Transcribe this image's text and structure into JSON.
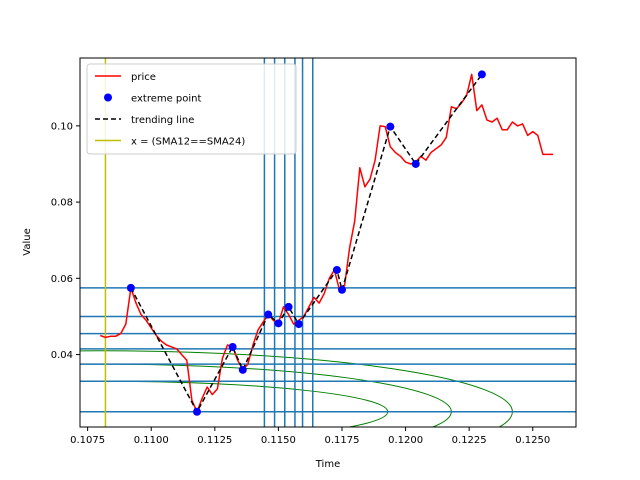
{
  "chart_data": {
    "type": "line",
    "title": "",
    "xlabel": "Time",
    "ylabel": "Value",
    "xlim": [
      0.1072,
      0.1267
    ],
    "ylim": [
      0.021,
      0.1178
    ],
    "x_ticks": [
      0.1075,
      0.11,
      0.1125,
      0.115,
      0.1175,
      0.12,
      0.1225,
      0.125
    ],
    "x_tick_labels": [
      "0.1075",
      "0.1100",
      "0.1125",
      "0.1150",
      "0.1175",
      "0.1200",
      "0.1225",
      "0.1250"
    ],
    "y_ticks": [
      0.04,
      0.06,
      0.08,
      0.1
    ],
    "y_tick_labels": [
      "0.04",
      "0.06",
      "0.08",
      "0.10"
    ],
    "grid": false,
    "legend_position": "upper-left",
    "colors": {
      "price": "#ff0000",
      "extreme": "#0000ff",
      "trend": "#000000",
      "cross": "#bfbf00",
      "level": "#1f77b4",
      "ellipse": "#008000"
    },
    "series": [
      {
        "name": "price",
        "style": "red-line",
        "x": [
          0.108,
          0.1082,
          0.1084,
          0.1086,
          0.1088,
          0.109,
          0.1092,
          0.1094,
          0.1096,
          0.1098,
          0.11,
          0.1102,
          0.1104,
          0.1106,
          0.1108,
          0.111,
          0.1112,
          0.1114,
          0.1116,
          0.1118,
          0.112,
          0.1122,
          0.1124,
          0.1126,
          0.1128,
          0.113,
          0.1132,
          0.1134,
          0.1136,
          0.1138,
          0.114,
          0.1142,
          0.1144,
          0.1146,
          0.1148,
          0.115,
          0.1152,
          0.1154,
          0.1156,
          0.1158,
          0.116,
          0.1162,
          0.1164,
          0.1166,
          0.1168,
          0.117,
          0.1172,
          0.1174,
          0.1176,
          0.1178,
          0.118,
          0.1182,
          0.1184,
          0.1186,
          0.1188,
          0.119,
          0.1192,
          0.1194,
          0.1196,
          0.1198,
          0.12,
          0.1202,
          0.1204,
          0.1206,
          0.1208,
          0.121,
          0.1212,
          0.1214,
          0.1216,
          0.1218,
          0.122,
          0.1222,
          0.1224,
          0.1226,
          0.1228,
          0.123,
          0.1232,
          0.1234,
          0.1236,
          0.1238,
          0.124,
          0.1242,
          0.1244,
          0.1246,
          0.1248,
          0.125,
          0.1252,
          0.1254,
          0.1256,
          0.1258
        ],
        "y": [
          0.045,
          0.0445,
          0.0448,
          0.0448,
          0.0455,
          0.048,
          0.0575,
          0.0535,
          0.0505,
          0.049,
          0.047,
          0.045,
          0.0435,
          0.0425,
          0.042,
          0.0415,
          0.04,
          0.0385,
          0.028,
          0.025,
          0.0285,
          0.0315,
          0.0295,
          0.031,
          0.039,
          0.0425,
          0.042,
          0.0385,
          0.036,
          0.0375,
          0.0425,
          0.0465,
          0.0485,
          0.0505,
          0.049,
          0.0482,
          0.0525,
          0.0505,
          0.048,
          0.049,
          0.05,
          0.0525,
          0.055,
          0.0535,
          0.056,
          0.06,
          0.0622,
          0.057,
          0.058,
          0.068,
          0.075,
          0.089,
          0.084,
          0.086,
          0.091,
          0.1,
          0.0998,
          0.0945,
          0.093,
          0.092,
          0.0905,
          0.09,
          0.0905,
          0.092,
          0.091,
          0.093,
          0.094,
          0.095,
          0.097,
          0.105,
          0.1045,
          0.106,
          0.108,
          0.1135,
          0.104,
          0.1055,
          0.1015,
          0.101,
          0.102,
          0.099,
          0.099,
          0.101,
          0.1,
          0.1005,
          0.0975,
          0.0985,
          0.0975,
          0.0925,
          0.0925,
          0.0925
        ]
      },
      {
        "name": "extreme point",
        "style": "blue-dot",
        "x": [
          0.1092,
          0.1118,
          0.1132,
          0.1136,
          0.1146,
          0.115,
          0.1154,
          0.1158,
          0.1173,
          0.1175,
          0.1194,
          0.1204,
          0.123
        ],
        "y": [
          0.0575,
          0.025,
          0.042,
          0.036,
          0.0505,
          0.0482,
          0.0525,
          0.048,
          0.0622,
          0.057,
          0.0998,
          0.09,
          0.1135
        ]
      },
      {
        "name": "trending line",
        "style": "black-dashed",
        "x": [
          0.1092,
          0.1118,
          0.1132,
          0.1136,
          0.1146,
          0.115,
          0.1154,
          0.1158,
          0.1173,
          0.1175,
          0.1194,
          0.1204,
          0.123
        ],
        "y": [
          0.0575,
          0.025,
          0.042,
          0.036,
          0.0505,
          0.0482,
          0.0525,
          0.048,
          0.0622,
          0.057,
          0.0998,
          0.09,
          0.1135
        ]
      },
      {
        "name": "x = (SMA12==SMA24)",
        "style": "yellow-vline",
        "x": [
          0.1082
        ]
      }
    ],
    "vertical_lines": [
      0.11445,
      0.11485,
      0.11525,
      0.11565,
      0.11595,
      0.11635
    ],
    "horizontal_lines": [
      0.0575,
      0.05,
      0.0455,
      0.0415,
      0.0375,
      0.033,
      0.025
    ],
    "ellipses": [
      {
        "cx": 0.108,
        "cy": 0.025,
        "rx": 0.0162,
        "ry": 0.016
      },
      {
        "cx": 0.108,
        "cy": 0.025,
        "rx": 0.0138,
        "ry": 0.0125
      },
      {
        "cx": 0.108,
        "cy": 0.025,
        "rx": 0.0113,
        "ry": 0.008
      }
    ]
  }
}
